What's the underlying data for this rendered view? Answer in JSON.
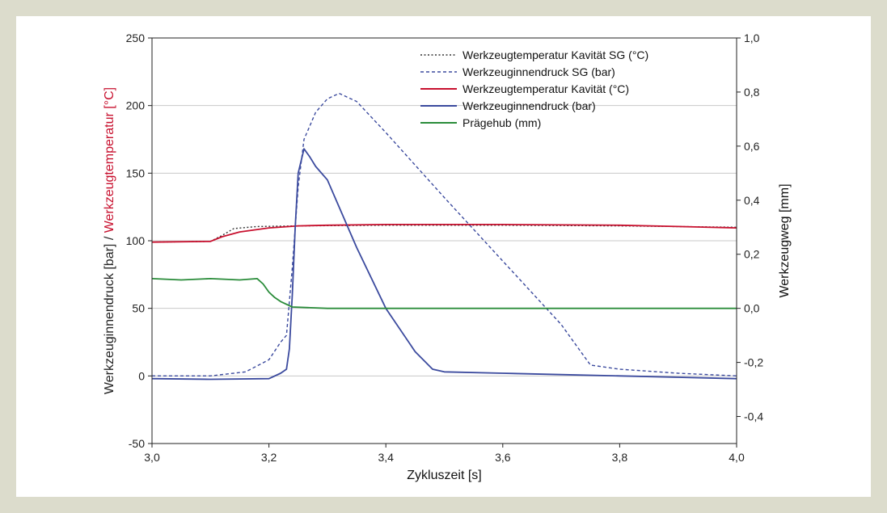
{
  "chart_data": {
    "type": "line",
    "xlabel": "Zykluszeit [s]",
    "ylabel_left_parts": [
      {
        "text": "Werkzeuginnendruck [bar] / ",
        "color": "#222222"
      },
      {
        "text": "Werkzeugtemperatur [°C]",
        "color": "#c8102e"
      }
    ],
    "ylabel_right": "Werkzeugweg [mm]",
    "xlim": [
      3.0,
      4.0
    ],
    "ylim_left": [
      -50,
      250
    ],
    "ylim_right": [
      -0.5,
      1.0
    ],
    "x_ticks": [
      3.0,
      3.2,
      3.4,
      3.6,
      3.8,
      4.0
    ],
    "x_tick_labels": [
      "3,0",
      "3,2",
      "3,4",
      "3,6",
      "3,8",
      "4,0"
    ],
    "y_left_ticks": [
      -50,
      0,
      50,
      100,
      150,
      200,
      250
    ],
    "y_left_tick_labels": [
      "-50",
      "0",
      "50",
      "100",
      "150",
      "200",
      "250"
    ],
    "y_right_ticks": [
      -0.4,
      -0.2,
      0.0,
      0.2,
      0.4,
      0.6,
      0.8,
      1.0
    ],
    "y_right_tick_labels": [
      "-0,4",
      "-0,2",
      "0,0",
      "0,2",
      "0,4",
      "0,6",
      "0,8",
      "1,0"
    ],
    "grid": "horizontal",
    "legend_position": "top-right",
    "series": [
      {
        "name": "Werkzeugtemperatur Kavität SG (°C)",
        "axis": "left",
        "color": "#333333",
        "dash": "dotted",
        "x": [
          3.0,
          3.1,
          3.12,
          3.14,
          3.18,
          3.25,
          3.4,
          3.6,
          3.8,
          4.0
        ],
        "y": [
          99,
          99.5,
          104,
          109,
          110.5,
          111,
          111.5,
          111.5,
          111,
          110
        ]
      },
      {
        "name": "Werkzeuginnendruck SG (bar)",
        "axis": "left",
        "color": "#3b4a9e",
        "dash": "dashed",
        "x": [
          3.0,
          3.1,
          3.16,
          3.2,
          3.22,
          3.23,
          3.24,
          3.25,
          3.26,
          3.28,
          3.3,
          3.32,
          3.35,
          3.4,
          3.5,
          3.6,
          3.7,
          3.73,
          3.75,
          3.8,
          3.9,
          4.0
        ],
        "y": [
          0,
          0,
          3,
          12,
          25,
          30,
          80,
          140,
          175,
          195,
          205,
          209,
          203,
          180,
          132,
          85,
          38,
          20,
          8,
          5,
          2,
          0
        ],
        "n": 22
      },
      {
        "name": "Werkzeugtemperatur Kavität (°C)",
        "axis": "left",
        "color": "#c8102e",
        "dash": "solid",
        "x": [
          3.0,
          3.1,
          3.12,
          3.15,
          3.2,
          3.25,
          3.3,
          3.4,
          3.6,
          3.8,
          3.9,
          4.0
        ],
        "y": [
          99,
          99.5,
          103,
          106.5,
          109.5,
          111,
          111.5,
          112,
          112,
          111.5,
          110.5,
          109.5
        ]
      },
      {
        "name": "Werkzeuginnendruck (bar)",
        "axis": "left",
        "color": "#3b4a9e",
        "dash": "solid",
        "x": [
          3.0,
          3.1,
          3.2,
          3.22,
          3.23,
          3.235,
          3.24,
          3.245,
          3.25,
          3.26,
          3.27,
          3.28,
          3.3,
          3.35,
          3.4,
          3.45,
          3.48,
          3.5,
          3.6,
          3.7,
          3.8,
          3.9,
          4.0
        ],
        "y": [
          -2,
          -2.5,
          -2,
          2,
          5,
          20,
          60,
          110,
          150,
          168,
          162,
          155,
          145,
          95,
          50,
          18,
          5,
          3,
          2,
          1,
          0,
          -1,
          -2
        ]
      },
      {
        "name": "Prägehub (mm)",
        "axis": "right",
        "color": "#2a8c3a",
        "dash": "solid",
        "x": [
          3.0,
          3.05,
          3.1,
          3.15,
          3.18,
          3.19,
          3.2,
          3.21,
          3.22,
          3.24,
          3.3,
          3.5,
          3.7,
          3.9,
          4.0
        ],
        "y": [
          0.11,
          0.105,
          0.11,
          0.105,
          0.11,
          0.09,
          0.06,
          0.04,
          0.025,
          0.005,
          0.0,
          0.0,
          0.0,
          0.0,
          0.0
        ]
      }
    ]
  }
}
